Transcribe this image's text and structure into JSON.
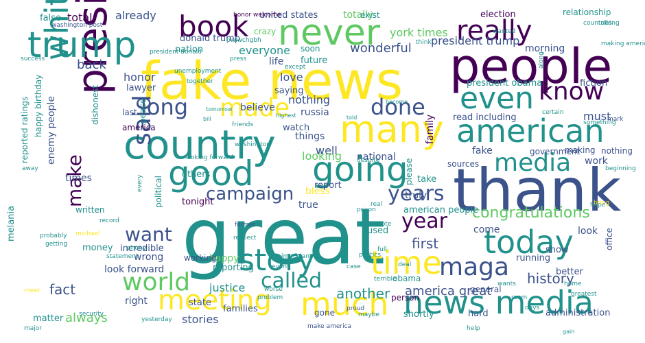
{
  "palette": {
    "dark": "#440154",
    "indigo": "#3b528b",
    "teal": "#21918c",
    "green": "#5ec962",
    "yellow": "#fde725"
  },
  "words": [
    {
      "text": "great"
    },
    {
      "text": "fake news"
    },
    {
      "text": "thank"
    },
    {
      "text": "people"
    },
    {
      "text": "president"
    },
    {
      "text": "country"
    },
    {
      "text": "many"
    },
    {
      "text": "trump"
    },
    {
      "text": "never"
    },
    {
      "text": "white house"
    },
    {
      "text": "good"
    },
    {
      "text": "going"
    },
    {
      "text": "american"
    },
    {
      "text": "today"
    },
    {
      "text": "much"
    },
    {
      "text": "news media"
    },
    {
      "text": "meeting"
    },
    {
      "text": "time"
    },
    {
      "text": "story"
    },
    {
      "text": "book"
    },
    {
      "text": "really"
    },
    {
      "text": "even"
    },
    {
      "text": "know"
    },
    {
      "text": "long"
    },
    {
      "text": "made"
    },
    {
      "text": "done"
    },
    {
      "text": "media"
    },
    {
      "text": "maga"
    },
    {
      "text": "world"
    },
    {
      "text": "called"
    },
    {
      "text": "said"
    },
    {
      "text": "want"
    },
    {
      "text": "make"
    },
    {
      "text": "year"
    },
    {
      "text": "years"
    },
    {
      "text": "campaign"
    },
    {
      "text": "congratulations"
    },
    {
      "text": "wonderful"
    },
    {
      "text": "history"
    },
    {
      "text": "fact"
    },
    {
      "text": "first"
    },
    {
      "text": "another"
    },
    {
      "text": "america great"
    },
    {
      "text": "always"
    },
    {
      "text": "stories"
    },
    {
      "text": "total"
    },
    {
      "text": "already"
    },
    {
      "text": "everyone"
    },
    {
      "text": "totally"
    },
    {
      "text": "york times"
    },
    {
      "text": "morning"
    },
    {
      "text": "president trump"
    },
    {
      "text": "donald trump"
    },
    {
      "text": "united states"
    },
    {
      "text": "nation"
    },
    {
      "text": "back"
    },
    {
      "text": "honor"
    },
    {
      "text": "love"
    },
    {
      "text": "nothing"
    },
    {
      "text": "russia"
    },
    {
      "text": "well"
    },
    {
      "text": "must"
    },
    {
      "text": "fake"
    },
    {
      "text": "enemy people"
    },
    {
      "text": "times"
    },
    {
      "text": "tonight"
    },
    {
      "text": "justice"
    },
    {
      "text": "wrong"
    },
    {
      "text": "look forward"
    },
    {
      "text": "happy"
    },
    {
      "text": "right"
    },
    {
      "text": "look"
    },
    {
      "text": "come"
    },
    {
      "text": "work"
    },
    {
      "text": "sources"
    },
    {
      "text": "national"
    },
    {
      "text": "looking"
    },
    {
      "text": "watch"
    },
    {
      "text": "read including"
    },
    {
      "text": "family"
    },
    {
      "text": "life"
    },
    {
      "text": "lawyer"
    },
    {
      "text": "believe"
    },
    {
      "text": "things"
    },
    {
      "text": "government"
    },
    {
      "text": "making"
    },
    {
      "text": "election"
    },
    {
      "text": "relationship"
    },
    {
      "text": "false"
    },
    {
      "text": "exist"
    },
    {
      "text": "crazy"
    },
    {
      "text": "soon"
    },
    {
      "text": "future"
    },
    {
      "text": "saying"
    },
    {
      "text": "president obama"
    },
    {
      "text": "fiction"
    },
    {
      "text": "last"
    },
    {
      "text": "america"
    },
    {
      "text": "dishonest"
    },
    {
      "text": "reported ratings"
    },
    {
      "text": "happy birthday"
    },
    {
      "text": "written"
    },
    {
      "text": "political"
    },
    {
      "text": "melania"
    },
    {
      "text": "money"
    },
    {
      "text": "incredible"
    },
    {
      "text": "reporting"
    },
    {
      "text": "used"
    },
    {
      "text": "general"
    },
    {
      "text": "running"
    },
    {
      "text": "better"
    },
    {
      "text": "show"
    },
    {
      "text": "office"
    },
    {
      "text": "american people"
    },
    {
      "text": "truly"
    },
    {
      "text": "take"
    },
    {
      "text": "please"
    },
    {
      "text": "true"
    },
    {
      "text": "bless"
    },
    {
      "text": "others"
    },
    {
      "text": "report"
    },
    {
      "text": "families"
    },
    {
      "text": "state"
    },
    {
      "text": "gone"
    },
    {
      "text": "shortly"
    },
    {
      "text": "hard"
    },
    {
      "text": "administration"
    },
    {
      "text": "obama"
    },
    {
      "text": "matter"
    },
    {
      "text": "person"
    },
    {
      "text": "peace"
    },
    {
      "text": "working"
    },
    {
      "text": "nothing"
    },
    {
      "text": "proud"
    },
    {
      "text": "make america"
    },
    {
      "text": "washington post"
    },
    {
      "text": "president donald"
    },
    {
      "text": "success"
    },
    {
      "text": "press"
    },
    {
      "text": "unemployment"
    },
    {
      "text": "tomorrow"
    },
    {
      "text": "bill"
    },
    {
      "text": "highest"
    },
    {
      "text": "told"
    },
    {
      "text": "become"
    },
    {
      "text": "friends"
    },
    {
      "text": "looking forward"
    },
    {
      "text": "despite"
    },
    {
      "text": "washington"
    },
    {
      "text": "real"
    },
    {
      "text": "prison"
    },
    {
      "text": "former"
    },
    {
      "text": "respect"
    },
    {
      "text": "important"
    },
    {
      "text": "politics"
    },
    {
      "text": "deal"
    },
    {
      "text": "terrible"
    },
    {
      "text": "home"
    },
    {
      "text": "days"
    },
    {
      "text": "wants"
    },
    {
      "text": "room"
    },
    {
      "text": "greatest"
    },
    {
      "text": "mark"
    },
    {
      "text": "statement"
    },
    {
      "text": "worse"
    },
    {
      "text": "problem"
    },
    {
      "text": "event"
    },
    {
      "text": "case"
    },
    {
      "text": "maybe"
    },
    {
      "text": "help"
    },
    {
      "text": "yesterday"
    },
    {
      "text": "security"
    },
    {
      "text": "record"
    },
    {
      "text": "probably"
    },
    {
      "text": "getting"
    },
    {
      "text": "away"
    },
    {
      "text": "every"
    },
    {
      "text": "honor welcome"
    },
    {
      "text": "pwiwchgbh"
    },
    {
      "text": "making america"
    },
    {
      "text": "countries"
    },
    {
      "text": "talking"
    },
    {
      "text": "think"
    },
    {
      "text": "except"
    },
    {
      "text": "together"
    },
    {
      "text": "wanted"
    },
    {
      "text": "certain"
    },
    {
      "text": "something"
    },
    {
      "text": "hope"
    },
    {
      "text": "beginning"
    },
    {
      "text": "along"
    },
    {
      "text": "wrote"
    },
    {
      "text": "full"
    },
    {
      "text": "michael"
    },
    {
      "text": "phony"
    },
    {
      "text": "meet"
    },
    {
      "text": "major"
    },
    {
      "text": "bring"
    },
    {
      "text": "gain"
    }
  ]
}
